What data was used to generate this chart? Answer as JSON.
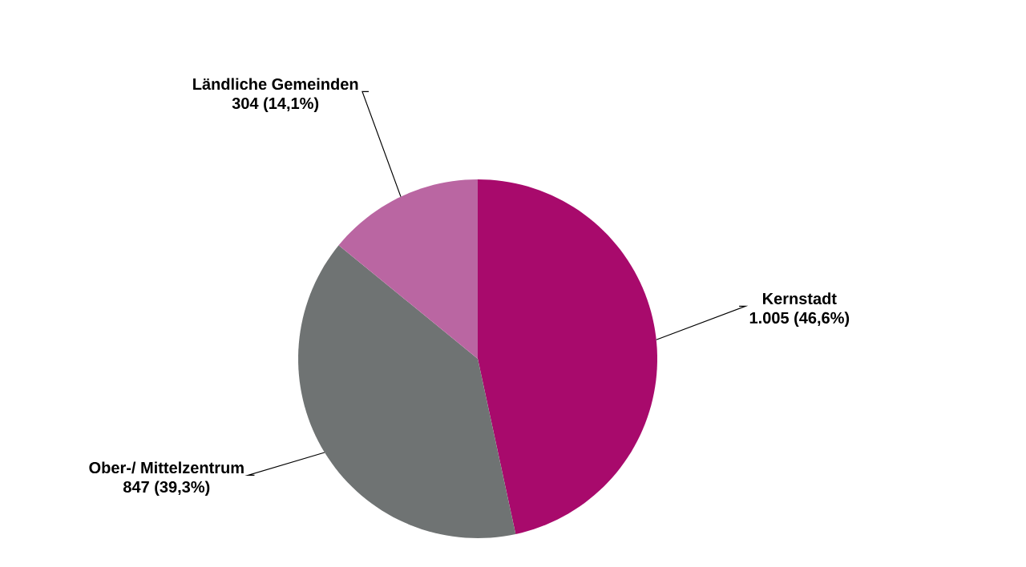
{
  "chart_data": {
    "type": "pie",
    "categories": [
      "Kernstadt",
      "Ober-/ Mittelzentrum",
      "Ländliche Gemeinden"
    ],
    "values": [
      1005,
      847,
      304
    ],
    "value_labels": [
      "1.005 (46,6%)",
      "847 (39,3%)",
      "304 (14,1%)"
    ],
    "colors": [
      "#a80a6c",
      "#6f7373",
      "#ba66a2"
    ]
  }
}
